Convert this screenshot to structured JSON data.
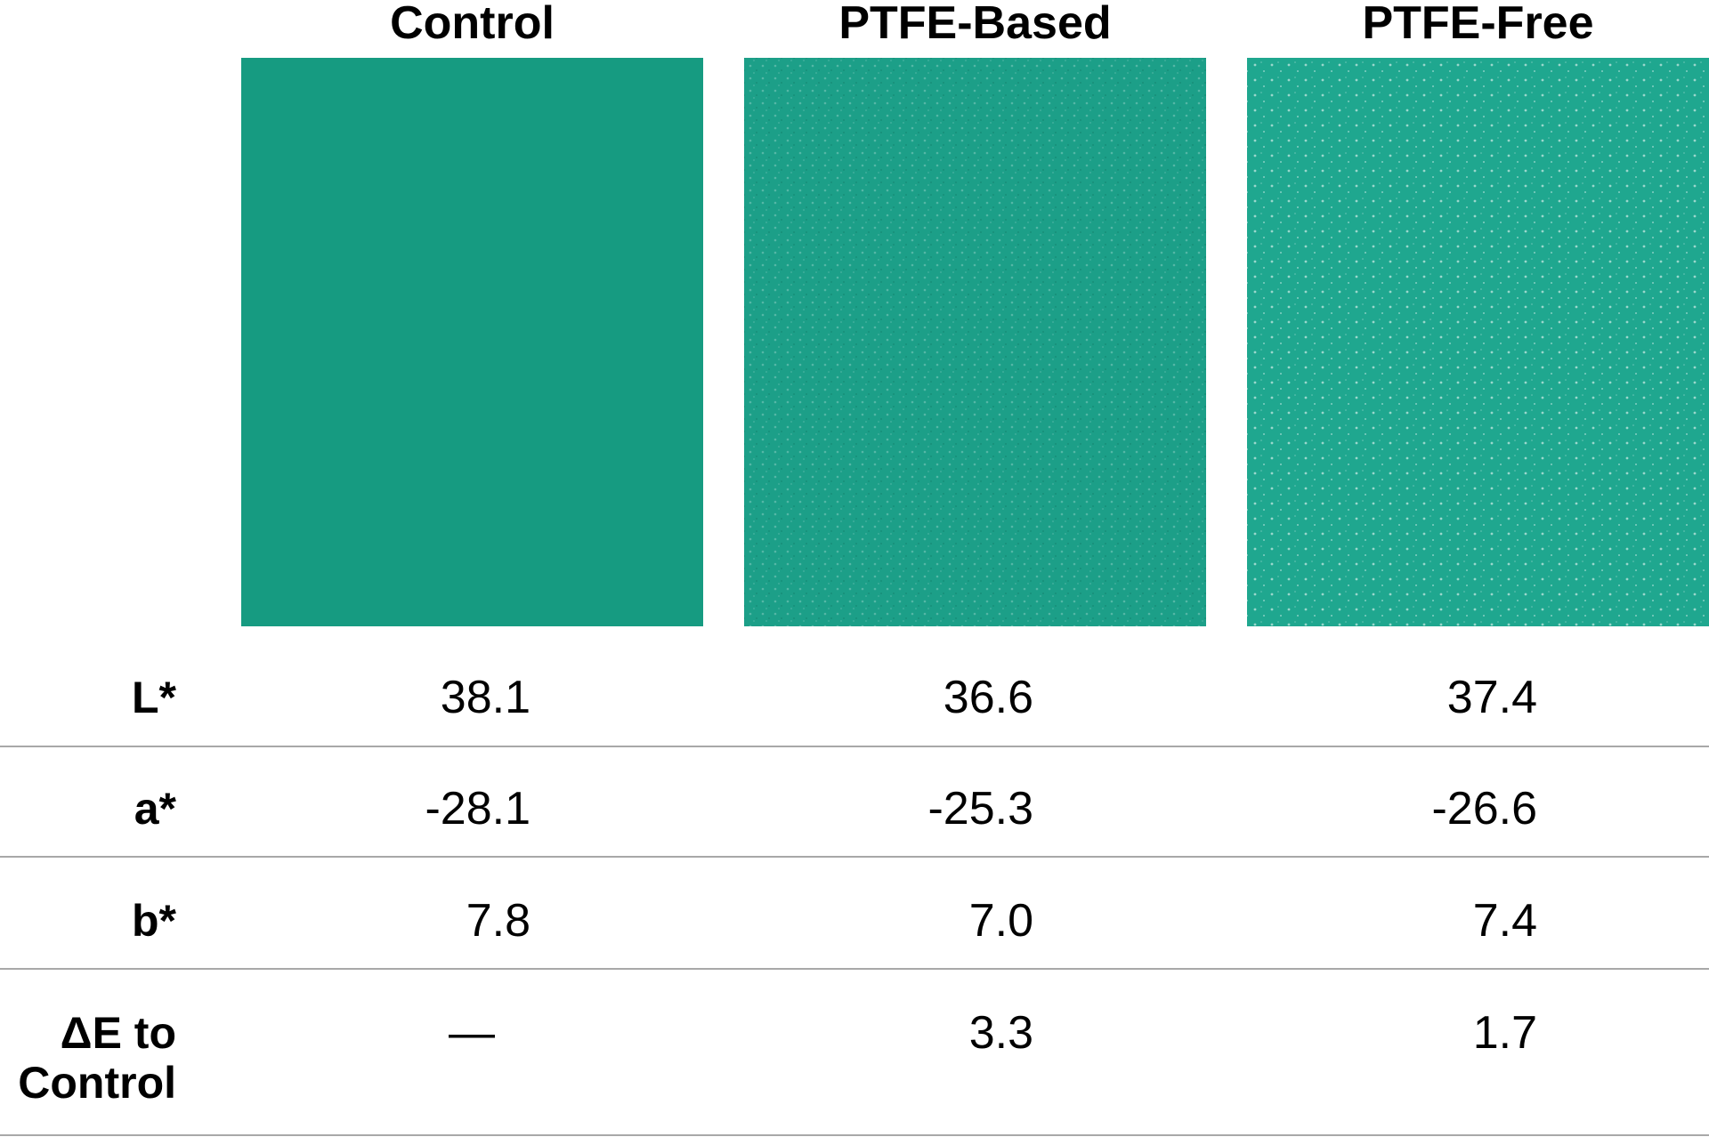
{
  "columns": [
    {
      "header": "Control",
      "color": "#169b81"
    },
    {
      "header": "PTFE-Based",
      "color": "#1c9f88"
    },
    {
      "header": "PTFE-Free",
      "color": "#1fa78f"
    }
  ],
  "rows": [
    {
      "label": "L*",
      "values": [
        "38.1",
        "36.6",
        "37.4"
      ]
    },
    {
      "label": "a*",
      "values": [
        "-28.1",
        "-25.3",
        "-26.6"
      ]
    },
    {
      "label": "b*",
      "values": [
        "7.8",
        "7.0",
        "7.4"
      ]
    },
    {
      "label": "ΔE to Control",
      "values": [
        "—",
        "3.3",
        "1.7"
      ]
    }
  ]
}
